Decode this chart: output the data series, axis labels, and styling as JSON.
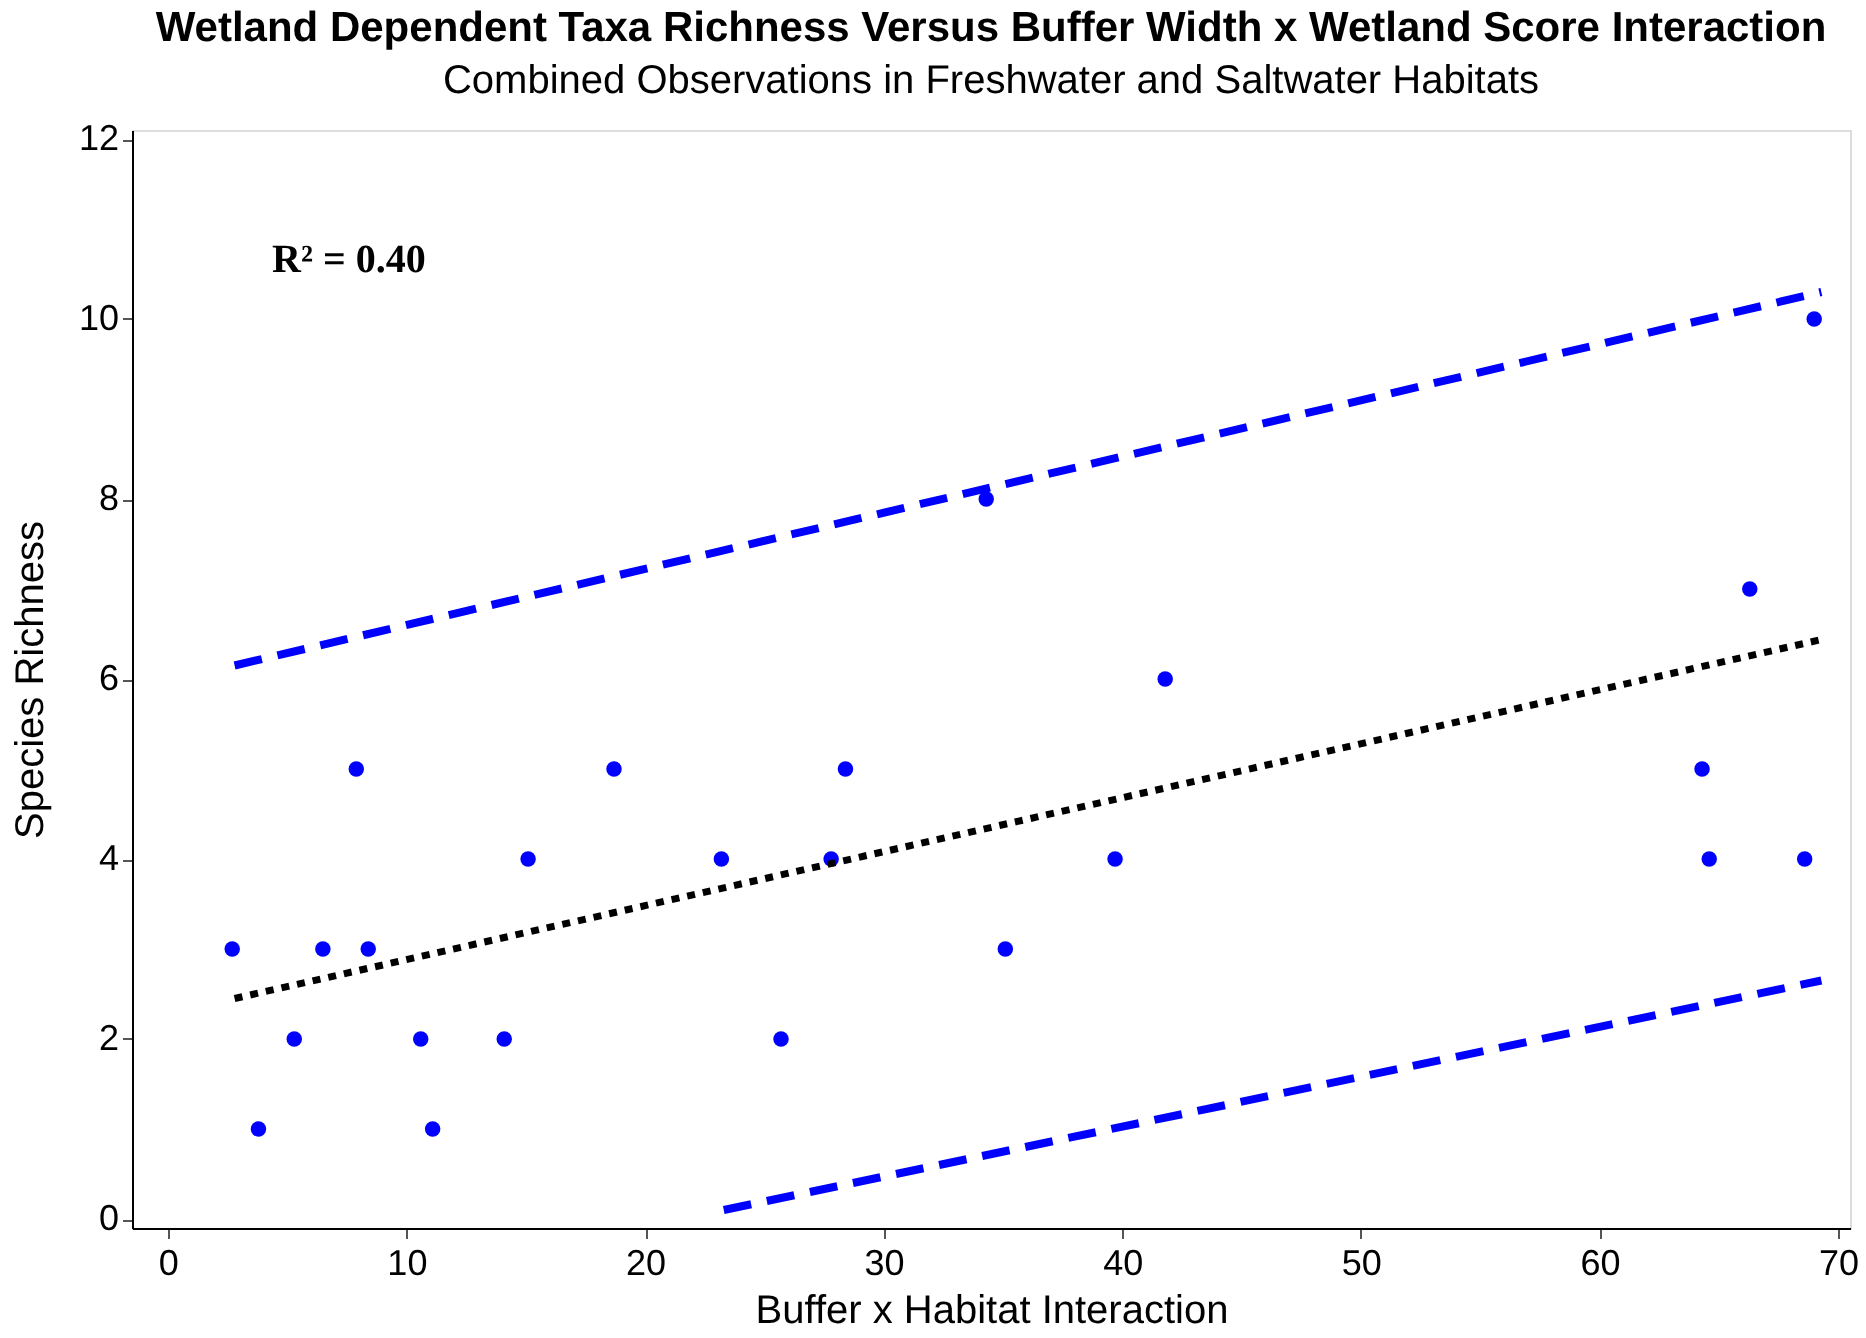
{
  "chart_data": {
    "type": "scatter",
    "title": "Wetland Dependent Taxa Richness Versus Buffer Width x Wetland Score Interaction",
    "subtitle": "Combined Observations in Freshwater and Saltwater Habitats",
    "xlabel": "Buffer x Habitat Interaction",
    "ylabel": "Species Richness",
    "annotations": [
      "R² = 0.40"
    ],
    "xlim": [
      -1.5,
      70.5
    ],
    "ylim": [
      -0.1,
      12.1
    ],
    "xticks": [
      0,
      10,
      20,
      30,
      40,
      50,
      60,
      70
    ],
    "yticks": [
      0,
      2,
      4,
      6,
      8,
      10,
      12
    ],
    "grid": false,
    "series": [
      {
        "color": "#0000ff",
        "marker": "circle",
        "x": [
          2.7,
          3.8,
          5.3,
          6.5,
          7.9,
          8.4,
          10.6,
          11.1,
          14.1,
          15.1,
          18.7,
          23.2,
          25.7,
          27.8,
          28.4,
          34.3,
          35.1,
          39.7,
          41.8,
          64.3,
          64.6,
          66.3,
          68.6,
          69.0
        ],
        "values": [
          3,
          1,
          2,
          3,
          5,
          3,
          2,
          1,
          2,
          4,
          5,
          4,
          2,
          4,
          5,
          8,
          3,
          4,
          6,
          5,
          4,
          7,
          4,
          10
        ]
      },
      {
        "type": "line",
        "color": "#000000",
        "line_style": "dotted",
        "x": [
          2.8,
          69.5
        ],
        "values": [
          2.45,
          6.45
        ]
      },
      {
        "type": "line",
        "color": "#0000ff",
        "line_style": "dashed",
        "x": [
          2.8,
          69.3
        ],
        "values": [
          6.15,
          10.3
        ]
      },
      {
        "type": "line",
        "color": "#0000ff",
        "line_style": "dashed",
        "x": [
          23.3,
          69.3
        ],
        "values": [
          0.1,
          2.65
        ]
      }
    ]
  }
}
